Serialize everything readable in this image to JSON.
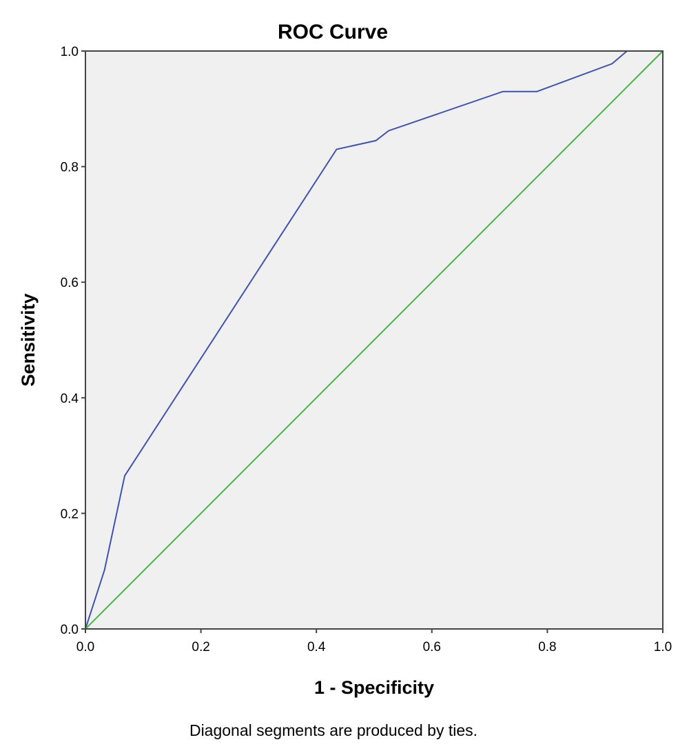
{
  "chart_data": {
    "type": "line",
    "title": "ROC Curve",
    "xlabel": "1 - Specificity",
    "ylabel": "Sensitivity",
    "footnote": "Diagonal segments are produced by ties.",
    "xlim": [
      0,
      1
    ],
    "ylim": [
      0,
      1
    ],
    "xticks": [
      "0.0",
      "0.2",
      "0.4",
      "0.6",
      "0.8",
      "1.0"
    ],
    "yticks": [
      "0.0",
      "0.2",
      "0.4",
      "0.6",
      "0.8",
      "1.0"
    ],
    "grid": false,
    "legend": "none",
    "background_color": "#f0f0f0",
    "series": [
      {
        "color": "#3f51b5",
        "x": [
          0.0,
          0.033,
          0.068,
          0.435,
          0.503,
          0.525,
          0.723,
          0.782,
          0.912,
          0.938,
          1.0
        ],
        "y": [
          0.0,
          0.102,
          0.265,
          0.83,
          0.845,
          0.862,
          0.93,
          0.93,
          0.978,
          1.0,
          1.0
        ]
      },
      {
        "color": "#4caf50",
        "x": [
          0.0,
          1.0
        ],
        "y": [
          0.0,
          1.0
        ]
      }
    ]
  }
}
